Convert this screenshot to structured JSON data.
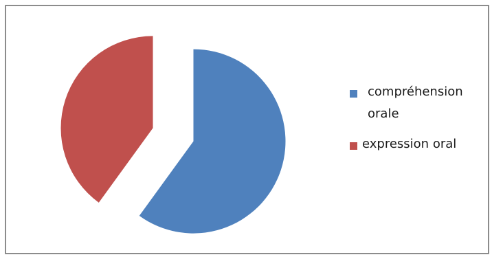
{
  "chart_data": {
    "type": "pie",
    "categories": [
      "compréhension orale",
      "expression oral"
    ],
    "values": [
      60,
      40
    ],
    "colors": [
      "#4f81bd",
      "#c0504d"
    ],
    "exploded": true,
    "legend_position": "right"
  },
  "legend": {
    "items": [
      {
        "line1": " compréhension",
        "line2": "orale",
        "color": "#4f81bd"
      },
      {
        "line1": "expression oral",
        "line2": "",
        "color": "#c0504d"
      }
    ]
  }
}
